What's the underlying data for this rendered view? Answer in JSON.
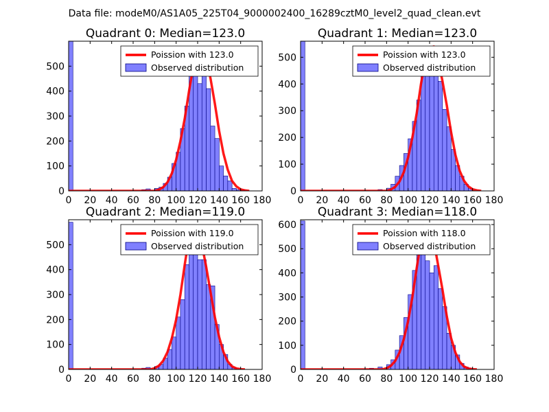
{
  "figure": {
    "suptitle": "Data file: modeM0/AS1A05_225T04_9000002400_16289cztM0_level2_quad_clean.evt"
  },
  "chart_data": [
    {
      "type": "bar",
      "title": "Quadrant 0: Median=123.0",
      "xlim": [
        0,
        180
      ],
      "ylim": [
        0,
        600
      ],
      "xticks": [
        0,
        20,
        40,
        60,
        80,
        100,
        120,
        140,
        160,
        180
      ],
      "yticks": [
        0,
        100,
        200,
        300,
        400,
        500
      ],
      "legend": [
        "Poission with 123.0",
        "Observed distribution"
      ],
      "legend_position": "upper-right",
      "bin_width": 4,
      "histogram": {
        "left_edges": [
          0,
          68,
          72,
          80,
          84,
          88,
          92,
          96,
          100,
          104,
          108,
          112,
          116,
          120,
          124,
          128,
          132,
          136,
          140,
          144,
          148,
          152,
          156,
          160
        ],
        "counts": [
          600,
          5,
          8,
          10,
          15,
          30,
          55,
          110,
          155,
          250,
          340,
          480,
          560,
          430,
          530,
          410,
          260,
          210,
          100,
          60,
          40,
          10,
          5,
          5
        ]
      },
      "poisson_curve": {
        "x": [
          0,
          40,
          80,
          84,
          88,
          92,
          96,
          100,
          104,
          108,
          112,
          116,
          120,
          124,
          128,
          132,
          136,
          140,
          144,
          148,
          152,
          156,
          160,
          164,
          168
        ],
        "y": [
          0,
          0,
          0,
          5,
          15,
          35,
          70,
          125,
          200,
          290,
          400,
          500,
          560,
          575,
          530,
          450,
          350,
          240,
          150,
          85,
          40,
          18,
          6,
          2,
          0
        ]
      }
    },
    {
      "type": "bar",
      "title": "Quadrant 1: Median=123.0",
      "xlim": [
        0,
        180
      ],
      "ylim": [
        0,
        560
      ],
      "xticks": [
        0,
        20,
        40,
        60,
        80,
        100,
        120,
        140,
        160,
        180
      ],
      "yticks": [
        0,
        100,
        200,
        300,
        400,
        500
      ],
      "legend": [
        "Poission with 123.0",
        "Observed distribution"
      ],
      "legend_position": "upper-right",
      "bin_width": 4,
      "histogram": {
        "left_edges": [
          0,
          72,
          80,
          84,
          88,
          92,
          96,
          100,
          104,
          108,
          112,
          116,
          120,
          124,
          128,
          132,
          136,
          140,
          144,
          148,
          152,
          156
        ],
        "counts": [
          560,
          5,
          10,
          25,
          55,
          95,
          140,
          195,
          260,
          340,
          440,
          530,
          505,
          460,
          410,
          305,
          240,
          155,
          95,
          55,
          25,
          10
        ]
      },
      "poisson_curve": {
        "x": [
          0,
          40,
          80,
          84,
          88,
          92,
          96,
          100,
          104,
          108,
          112,
          116,
          120,
          124,
          128,
          132,
          136,
          140,
          144,
          148,
          152,
          156,
          160,
          164,
          168
        ],
        "y": [
          0,
          0,
          0,
          5,
          15,
          35,
          70,
          125,
          200,
          290,
          400,
          490,
          535,
          540,
          490,
          410,
          320,
          220,
          135,
          75,
          38,
          17,
          6,
          2,
          0
        ]
      }
    },
    {
      "type": "bar",
      "title": "Quadrant 2: Median=119.0",
      "xlim": [
        0,
        180
      ],
      "ylim": [
        0,
        600
      ],
      "xticks": [
        0,
        20,
        40,
        60,
        80,
        100,
        120,
        140,
        160,
        180
      ],
      "yticks": [
        0,
        100,
        200,
        300,
        400,
        500
      ],
      "legend": [
        "Poission with 119.0",
        "Observed distribution"
      ],
      "legend_position": "upper-right",
      "bin_width": 4,
      "histogram": {
        "left_edges": [
          0,
          68,
          72,
          80,
          84,
          88,
          92,
          96,
          100,
          104,
          108,
          112,
          116,
          120,
          124,
          128,
          132,
          136,
          140,
          144,
          148,
          152
        ],
        "counts": [
          590,
          5,
          8,
          12,
          20,
          45,
          80,
          130,
          210,
          280,
          420,
          500,
          530,
          440,
          440,
          340,
          335,
          180,
          100,
          60,
          20,
          8
        ]
      },
      "poisson_curve": {
        "x": [
          0,
          40,
          76,
          80,
          84,
          88,
          92,
          96,
          100,
          104,
          108,
          112,
          116,
          120,
          124,
          128,
          132,
          136,
          140,
          144,
          148,
          152,
          156,
          160,
          164
        ],
        "y": [
          0,
          0,
          0,
          5,
          15,
          35,
          70,
          125,
          200,
          300,
          420,
          530,
          570,
          560,
          500,
          410,
          310,
          210,
          130,
          70,
          32,
          12,
          4,
          1,
          0
        ]
      }
    },
    {
      "type": "bar",
      "title": "Quadrant 3: Median=118.0",
      "xlim": [
        0,
        180
      ],
      "ylim": [
        0,
        620
      ],
      "xticks": [
        0,
        20,
        40,
        60,
        80,
        100,
        120,
        140,
        160,
        180
      ],
      "yticks": [
        0,
        100,
        200,
        300,
        400,
        500,
        600
      ],
      "legend": [
        "Poission with 118.0",
        "Observed distribution"
      ],
      "legend_position": "upper-right",
      "bin_width": 4,
      "histogram": {
        "left_edges": [
          0,
          64,
          72,
          80,
          84,
          88,
          92,
          96,
          100,
          104,
          108,
          112,
          116,
          120,
          124,
          128,
          132,
          136,
          140,
          144,
          148,
          152,
          156
        ],
        "counts": [
          615,
          5,
          10,
          20,
          40,
          80,
          140,
          215,
          310,
          410,
          500,
          530,
          450,
          400,
          430,
          335,
          260,
          150,
          100,
          60,
          25,
          10,
          5
        ]
      },
      "poisson_curve": {
        "x": [
          0,
          40,
          76,
          80,
          84,
          88,
          92,
          96,
          100,
          104,
          108,
          112,
          116,
          120,
          124,
          128,
          132,
          136,
          140,
          144,
          148,
          152,
          156,
          160,
          164
        ],
        "y": [
          0,
          0,
          0,
          5,
          15,
          35,
          70,
          125,
          200,
          300,
          420,
          530,
          590,
          590,
          530,
          430,
          330,
          220,
          130,
          70,
          32,
          12,
          4,
          1,
          0
        ]
      }
    }
  ],
  "colors": {
    "histogram_fill": "#8080ff",
    "histogram_edge": "#000080",
    "poisson_line": "#ff0000",
    "axes": "#000000",
    "legend_border": "#000000",
    "background": "#ffffff"
  }
}
